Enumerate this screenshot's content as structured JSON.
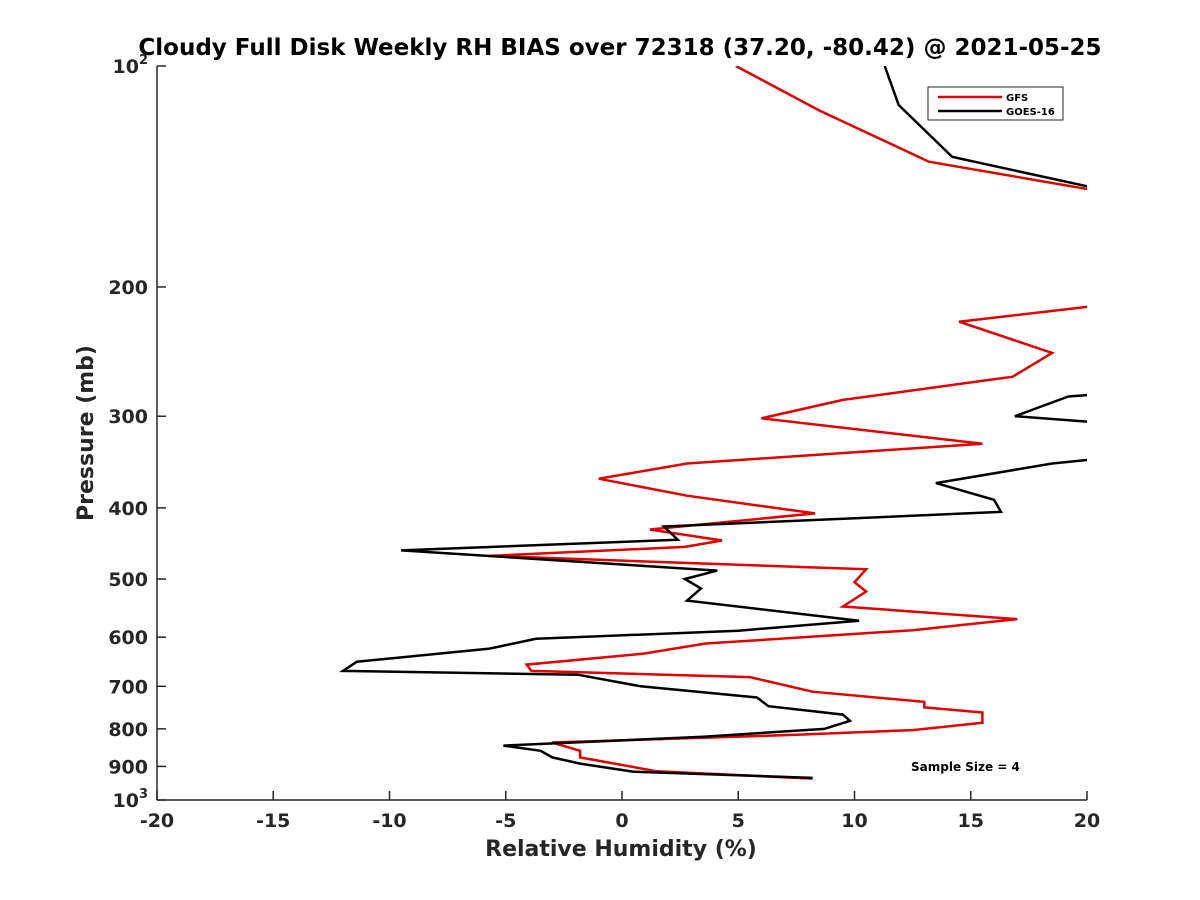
{
  "chart_data": {
    "type": "line",
    "title": "Cloudy Full Disk Weekly RH BIAS over 72318 (37.20, -80.42) @ 2021-05-25",
    "xlabel": "Relative Humidity (%)",
    "ylabel": "Pressure (mb)",
    "xlim": [
      -20,
      20
    ],
    "ylim": [
      100,
      1000
    ],
    "yscale": "log",
    "y_reversed": true,
    "xticks": [
      -20,
      -15,
      -10,
      -5,
      0,
      5,
      10,
      15,
      20
    ],
    "xtick_labels": [
      "-20",
      "-15",
      "-10",
      "-5",
      "0",
      "5",
      "10",
      "15",
      "20"
    ],
    "yticks": [
      {
        "value": 100,
        "label": "10",
        "exponent": "2"
      },
      {
        "value": 200,
        "label": "200",
        "exponent": ""
      },
      {
        "value": 300,
        "label": "300",
        "exponent": ""
      },
      {
        "value": 400,
        "label": "400",
        "exponent": ""
      },
      {
        "value": 500,
        "label": "500",
        "exponent": ""
      },
      {
        "value": 600,
        "label": "600",
        "exponent": ""
      },
      {
        "value": 700,
        "label": "700",
        "exponent": ""
      },
      {
        "value": 800,
        "label": "800",
        "exponent": ""
      },
      {
        "value": 900,
        "label": "900",
        "exponent": ""
      },
      {
        "value": 1000,
        "label": "10",
        "exponent": "3"
      }
    ],
    "legend": {
      "position": "top-right",
      "entries": [
        "GFS",
        "GOES-16"
      ]
    },
    "annotation": "Sample Size = 4",
    "series": [
      {
        "name": "GFS",
        "color": "#e00000",
        "points": [
          [
            4.9,
            100
          ],
          [
            8.5,
            115
          ],
          [
            13.2,
            135
          ],
          [
            20.5,
            148
          ],
          [
            20.5,
            212
          ],
          [
            14.5,
            223
          ],
          [
            18.5,
            246
          ],
          [
            16.8,
            265
          ],
          [
            9.5,
            285
          ],
          [
            6.0,
            302
          ],
          [
            15.5,
            327
          ],
          [
            2.8,
            348
          ],
          [
            -1.0,
            365
          ],
          [
            2.8,
            385
          ],
          [
            8.3,
            407
          ],
          [
            1.2,
            428
          ],
          [
            4.3,
            443
          ],
          [
            2.7,
            452
          ],
          [
            -5.7,
            465
          ],
          [
            10.5,
            485
          ],
          [
            10.0,
            505
          ],
          [
            10.5,
            520
          ],
          [
            9.5,
            545
          ],
          [
            17.0,
            567
          ],
          [
            12.5,
            587
          ],
          [
            3.6,
            612
          ],
          [
            0.9,
            632
          ],
          [
            -4.1,
            654
          ],
          [
            -3.9,
            667
          ],
          [
            5.5,
            680
          ],
          [
            8.2,
            712
          ],
          [
            13.0,
            735
          ],
          [
            13.0,
            748
          ],
          [
            15.5,
            760
          ],
          [
            15.5,
            785
          ],
          [
            12.5,
            803
          ],
          [
            7.5,
            815
          ],
          [
            -3.0,
            835
          ],
          [
            -1.8,
            857
          ],
          [
            -1.8,
            875
          ],
          [
            1.5,
            914
          ],
          [
            8.2,
            935
          ]
        ]
      },
      {
        "name": "GOES-16",
        "color": "#000000",
        "points": [
          [
            11.3,
            100
          ],
          [
            11.9,
            113
          ],
          [
            14.2,
            133
          ],
          [
            20.5,
            147
          ],
          [
            20.5,
            280
          ],
          [
            19.2,
            282
          ],
          [
            16.9,
            300
          ],
          [
            20.5,
            306
          ],
          [
            20.5,
            343
          ],
          [
            18.5,
            348
          ],
          [
            13.5,
            370
          ],
          [
            16.0,
            390
          ],
          [
            16.3,
            405
          ],
          [
            1.8,
            424
          ],
          [
            2.4,
            442
          ],
          [
            -9.5,
            457
          ],
          [
            4.1,
            487
          ],
          [
            2.7,
            500
          ],
          [
            3.4,
            515
          ],
          [
            2.8,
            535
          ],
          [
            10.2,
            570
          ],
          [
            5.0,
            588
          ],
          [
            -3.7,
            603
          ],
          [
            -5.7,
            622
          ],
          [
            -11.4,
            648
          ],
          [
            -12.0,
            667
          ],
          [
            -1.9,
            675
          ],
          [
            0.8,
            700
          ],
          [
            5.8,
            725
          ],
          [
            6.3,
            745
          ],
          [
            9.5,
            765
          ],
          [
            9.8,
            780
          ],
          [
            8.7,
            800
          ],
          [
            3.5,
            820
          ],
          [
            -5.1,
            843
          ],
          [
            -3.5,
            857
          ],
          [
            -3.0,
            875
          ],
          [
            -1.8,
            892
          ],
          [
            0.5,
            915
          ],
          [
            8.2,
            933
          ]
        ]
      }
    ]
  }
}
